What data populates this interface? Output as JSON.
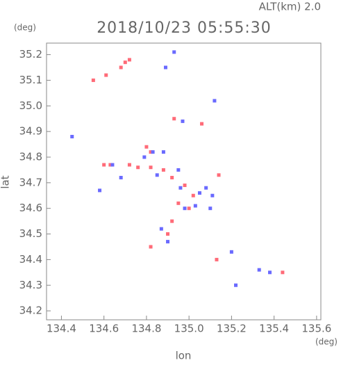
{
  "chart_data": {
    "type": "scatter",
    "title": "2018/10/23 05:55:30",
    "subtitle": "ALT(km) 2.0",
    "x_label": "lon",
    "y_label": "lat",
    "x_unit": "(deg)",
    "y_unit": "(deg)",
    "xlim": [
      134.33,
      135.62
    ],
    "ylim": [
      34.165,
      35.245
    ],
    "xticks": [
      134.4,
      134.6,
      134.8,
      {
        "value": 135,
        "label": "135.0"
      },
      135.2,
      135.4,
      135.6
    ],
    "yticks": [
      34.2,
      34.3,
      34.4,
      34.5,
      34.6,
      34.7,
      34.8,
      34.9,
      {
        "value": 35,
        "label": "35.0"
      },
      35.1,
      35.2
    ],
    "series": [
      {
        "color": "#ff6b78",
        "x": [
          134.72,
          134.7,
          134.68,
          134.61,
          134.55,
          134.93,
          135.06,
          134.8,
          134.82,
          134.63,
          134.6,
          134.72,
          134.76,
          134.82,
          134.88,
          134.92,
          134.98,
          135.02,
          134.95,
          135.0,
          134.92,
          134.9,
          134.82,
          135.14,
          135.13,
          135.44
        ],
        "y": [
          35.18,
          35.17,
          35.15,
          35.12,
          35.1,
          34.95,
          34.93,
          34.84,
          34.82,
          34.77,
          34.77,
          34.77,
          34.76,
          34.76,
          34.75,
          34.72,
          34.69,
          34.65,
          34.62,
          34.6,
          34.55,
          34.5,
          34.45,
          34.73,
          34.4,
          34.35
        ]
      },
      {
        "color": "#6a6aff",
        "x": [
          134.93,
          134.89,
          135.12,
          134.97,
          134.83,
          134.88,
          134.64,
          134.68,
          134.85,
          134.95,
          134.96,
          135.05,
          135.08,
          134.98,
          135.03,
          134.87,
          134.9,
          135.2,
          135.22,
          135.33,
          135.38,
          135.11,
          134.58,
          134.45,
          135.1,
          134.79
        ],
        "y": [
          35.21,
          35.15,
          35.02,
          34.94,
          34.82,
          34.82,
          34.77,
          34.72,
          34.73,
          34.75,
          34.68,
          34.66,
          34.68,
          34.6,
          34.61,
          34.52,
          34.47,
          34.43,
          34.3,
          34.36,
          34.35,
          34.65,
          34.67,
          34.88,
          34.6,
          34.8
        ]
      }
    ]
  }
}
